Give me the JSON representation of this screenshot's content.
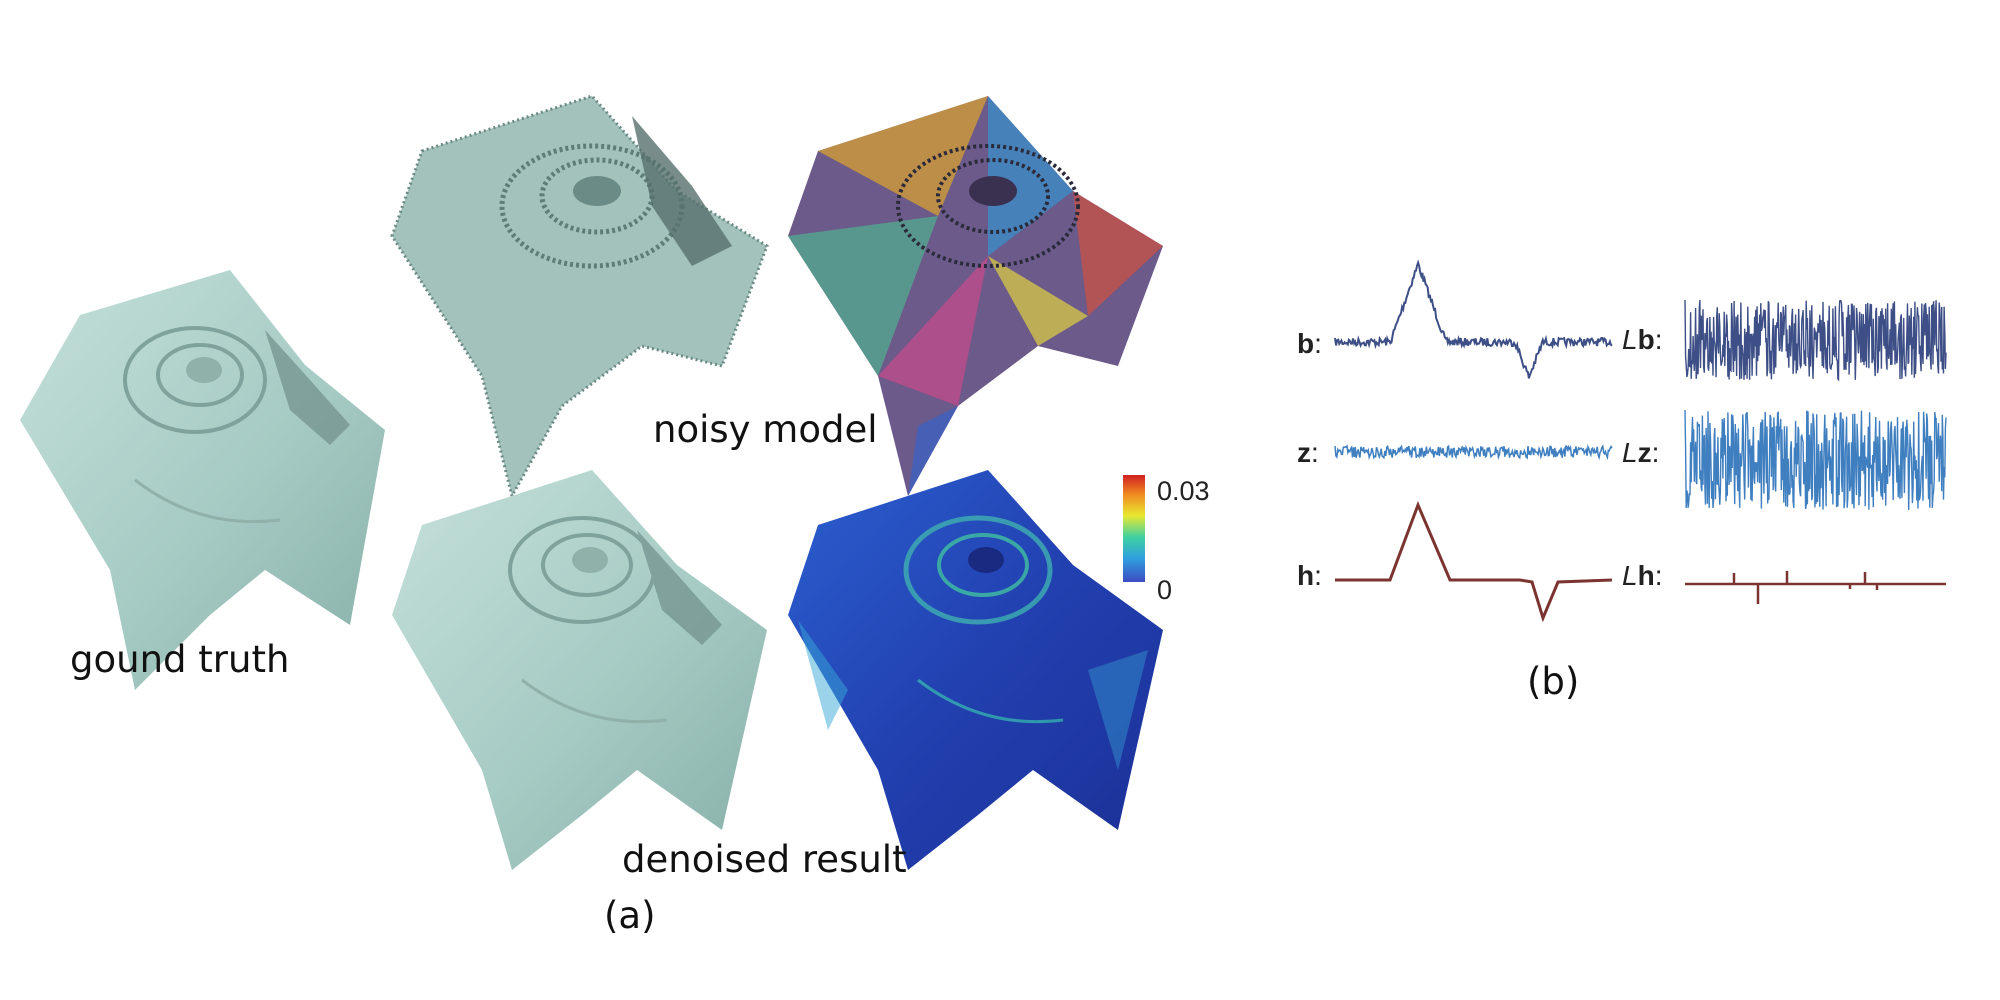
{
  "figure": {
    "panel_a": {
      "ground_truth_label": "gound truth",
      "noisy_label": "noisy model",
      "denoised_label": "denoised result",
      "panel_tag": "(a)",
      "colorbar": {
        "max_label": "0.03",
        "min_label": "0",
        "colors": [
          "#3b4cc0",
          "#2f9fe0",
          "#3fd0a0",
          "#e8e830",
          "#f08a20",
          "#d02020"
        ]
      },
      "mesh_color": "#a9cdc6",
      "error_color": "#2346b8"
    },
    "panel_b": {
      "panel_tag": "(b)",
      "signals": [
        {
          "name": "b",
          "operator": "",
          "suffix": ":",
          "color": "#3d4f86"
        },
        {
          "name": "b",
          "operator": "L",
          "suffix": ":",
          "color": "#3d4f86"
        },
        {
          "name": "z",
          "operator": "",
          "suffix": ":",
          "color": "#3f7fc0"
        },
        {
          "name": "z",
          "operator": "L",
          "suffix": ":",
          "color": "#3f7fc0"
        },
        {
          "name": "h",
          "operator": "",
          "suffix": ":",
          "color": "#7b3430"
        },
        {
          "name": "h",
          "operator": "L",
          "suffix": ":",
          "color": "#7b3430"
        }
      ]
    }
  }
}
